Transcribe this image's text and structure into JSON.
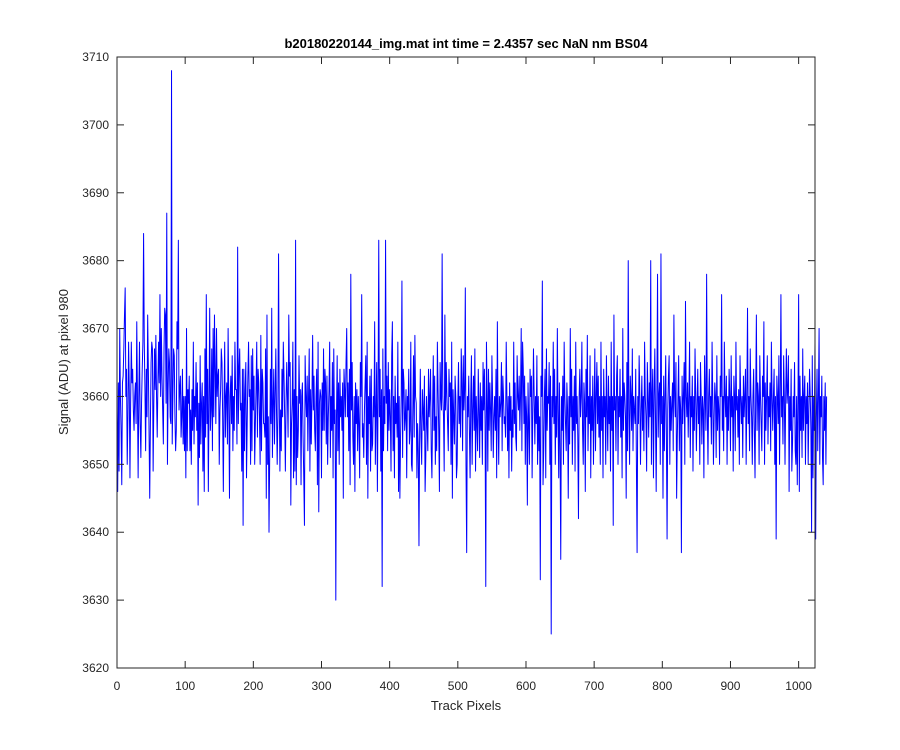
{
  "chart_data": {
    "type": "line",
    "title": "b20180220144_img.mat int time = 2.4357 sec  NaN nm BS04",
    "xlabel": "Track Pixels",
    "ylabel": "Signal (ADU) at pixel 980",
    "xlim": [
      0,
      1024
    ],
    "ylim": [
      3620,
      3710
    ],
    "xticks": [
      0,
      100,
      200,
      300,
      400,
      500,
      600,
      700,
      800,
      900,
      1000
    ],
    "yticks": [
      3620,
      3630,
      3640,
      3650,
      3660,
      3670,
      3680,
      3690,
      3700,
      3710
    ],
    "grid": false,
    "series": [
      {
        "color": "#0000ff",
        "x_start": 0,
        "x_step": 1,
        "values": [
          3658,
          3646,
          3662,
          3649,
          3670,
          3660,
          3655,
          3647,
          3662,
          3663,
          3667,
          3672,
          3676,
          3660,
          3664,
          3650,
          3657,
          3668,
          3661,
          3648,
          3659,
          3668,
          3662,
          3664,
          3658,
          3655,
          3660,
          3662,
          3656,
          3671,
          3660,
          3648,
          3660,
          3668,
          3656,
          3651,
          3659,
          3664,
          3668,
          3684,
          3668,
          3661,
          3652,
          3664,
          3657,
          3672,
          3664,
          3655,
          3645,
          3656,
          3665,
          3668,
          3667,
          3649,
          3659,
          3667,
          3661,
          3669,
          3660,
          3654,
          3662,
          3668,
          3662,
          3675,
          3660,
          3670,
          3663,
          3658,
          3653,
          3667,
          3673,
          3672,
          3659,
          3687,
          3650,
          3661,
          3667,
          3665,
          3657,
          3656,
          3708,
          3653,
          3660,
          3667,
          3666,
          3657,
          3652,
          3655,
          3671,
          3667,
          3683,
          3658,
          3661,
          3663,
          3654,
          3657,
          3664,
          3653,
          3660,
          3652,
          3660,
          3648,
          3670,
          3652,
          3661,
          3659,
          3663,
          3652,
          3658,
          3650,
          3661,
          3655,
          3668,
          3653,
          3660,
          3657,
          3665,
          3655,
          3662,
          3644,
          3659,
          3651,
          3666,
          3653,
          3659,
          3662,
          3649,
          3660,
          3646,
          3667,
          3654,
          3675,
          3656,
          3664,
          3646,
          3659,
          3673,
          3655,
          3658,
          3667,
          3652,
          3670,
          3657,
          3672,
          3664,
          3656,
          3670,
          3660,
          3663,
          3664,
          3650,
          3658,
          3661,
          3667,
          3665,
          3657,
          3646,
          3659,
          3668,
          3654,
          3660,
          3662,
          3653,
          3670,
          3660,
          3645,
          3660,
          3663,
          3656,
          3666,
          3652,
          3660,
          3655,
          3668,
          3661,
          3661,
          3653,
          3682,
          3656,
          3664,
          3667,
          3658,
          3659,
          3649,
          3664,
          3641,
          3664,
          3652,
          3661,
          3665,
          3648,
          3656,
          3663,
          3668,
          3660,
          3661,
          3650,
          3666,
          3652,
          3667,
          3658,
          3663,
          3650,
          3656,
          3661,
          3668,
          3654,
          3664,
          3662,
          3657,
          3650,
          3669,
          3652,
          3664,
          3662,
          3656,
          3656,
          3654,
          3667,
          3645,
          3672,
          3650,
          3657,
          3640,
          3651,
          3664,
          3656,
          3673,
          3651,
          3659,
          3664,
          3653,
          3660,
          3667,
          3658,
          3650,
          3657,
          3681,
          3660,
          3649,
          3658,
          3652,
          3664,
          3657,
          3668,
          3663,
          3657,
          3649,
          3659,
          3665,
          3660,
          3654,
          3672,
          3663,
          3665,
          3644,
          3656,
          3659,
          3668,
          3648,
          3661,
          3649,
          3683,
          3647,
          3660,
          3651,
          3655,
          3666,
          3659,
          3661,
          3647,
          3660,
          3662,
          3654,
          3648,
          3641,
          3666,
          3660,
          3657,
          3663,
          3652,
          3660,
          3667,
          3649,
          3661,
          3653,
          3660,
          3669,
          3658,
          3663,
          3655,
          3652,
          3660,
          3664,
          3647,
          3668,
          3643,
          3659,
          3661,
          3660,
          3648,
          3662,
          3655,
          3667,
          3655,
          3664,
          3662,
          3653,
          3663,
          3650,
          3657,
          3661,
          3668,
          3651,
          3660,
          3655,
          3665,
          3648,
          3667,
          3656,
          3658,
          3630,
          3657,
          3666,
          3652,
          3662,
          3650,
          3664,
          3657,
          3660,
          3655,
          3662,
          3645,
          3664,
          3661,
          3657,
          3665,
          3670,
          3657,
          3662,
          3652,
          3664,
          3647,
          3678,
          3658,
          3665,
          3654,
          3650,
          3660,
          3646,
          3662,
          3656,
          3661,
          3652,
          3660,
          3656,
          3648,
          3665,
          3660,
          3675,
          3654,
          3656,
          3651,
          3658,
          3662,
          3666,
          3650,
          3668,
          3645,
          3660,
          3656,
          3663,
          3649,
          3664,
          3652,
          3653,
          3660,
          3657,
          3671,
          3650,
          3658,
          3665,
          3646,
          3660,
          3683,
          3657,
          3664,
          3649,
          3661,
          3632,
          3667,
          3652,
          3660,
          3656,
          3683,
          3659,
          3663,
          3652,
          3665,
          3655,
          3661,
          3657,
          3649,
          3666,
          3671,
          3652,
          3660,
          3648,
          3663,
          3656,
          3659,
          3654,
          3668,
          3646,
          3660,
          3645,
          3654,
          3660,
          3677,
          3651,
          3664,
          3662,
          3655,
          3657,
          3661,
          3648,
          3660,
          3658,
          3664,
          3653,
          3655,
          3668,
          3650,
          3649,
          3658,
          3666,
          3654,
          3669,
          3660,
          3659,
          3648,
          3656,
          3652,
          3638,
          3655,
          3664,
          3654,
          3650,
          3661,
          3658,
          3655,
          3663,
          3646,
          3651,
          3660,
          3656,
          3652,
          3664,
          3657,
          3660,
          3664,
          3652,
          3648,
          3658,
          3666,
          3655,
          3663,
          3650,
          3657,
          3652,
          3668,
          3661,
          3655,
          3646,
          3665,
          3660,
          3658,
          3681,
          3660,
          3657,
          3649,
          3672,
          3658,
          3665,
          3660,
          3656,
          3652,
          3664,
          3660,
          3662,
          3650,
          3668,
          3645,
          3661,
          3657,
          3653,
          3663,
          3660,
          3648,
          3650,
          3659,
          3665,
          3656,
          3660,
          3654,
          3667,
          3662,
          3652,
          3666,
          3658,
          3661,
          3676,
          3650,
          3637,
          3660,
          3657,
          3663,
          3655,
          3648,
          3660,
          3666,
          3650,
          3658,
          3663,
          3655,
          3667,
          3649,
          3660,
          3656,
          3652,
          3664,
          3658,
          3651,
          3662,
          3655,
          3660,
          3650,
          3665,
          3658,
          3664,
          3656,
          3632,
          3668,
          3660,
          3649,
          3664,
          3655,
          3662,
          3658,
          3652,
          3666,
          3660,
          3651,
          3657,
          3660,
          3655,
          3664,
          3648,
          3671,
          3658,
          3650,
          3660,
          3657,
          3659,
          3665,
          3652,
          3663,
          3660,
          3656,
          3657,
          3654,
          3668,
          3660,
          3652,
          3660,
          3648,
          3662,
          3655,
          3660,
          3649,
          3658,
          3654,
          3668,
          3656,
          3662,
          3654,
          3652,
          3666,
          3660,
          3658,
          3663,
          3655,
          3660,
          3670,
          3652,
          3668,
          3664,
          3656,
          3663,
          3650,
          3660,
          3657,
          3644,
          3662,
          3656,
          3650,
          3664,
          3660,
          3663,
          3648,
          3658,
          3667,
          3660,
          3653,
          3660,
          3656,
          3666,
          3650,
          3660,
          3652,
          3657,
          3633,
          3663,
          3660,
          3677,
          3647,
          3652,
          3660,
          3664,
          3648,
          3667,
          3655,
          3660,
          3659,
          3665,
          3650,
          3663,
          3625,
          3660,
          3657,
          3668,
          3656,
          3664,
          3650,
          3660,
          3654,
          3670,
          3658,
          3648,
          3662,
          3652,
          3636,
          3660,
          3655,
          3663,
          3650,
          3668,
          3660,
          3656,
          3652,
          3662,
          3658,
          3645,
          3660,
          3653,
          3670,
          3657,
          3664,
          3650,
          3660,
          3655,
          3663,
          3649,
          3668,
          3656,
          3660,
          3654,
          3642,
          3660,
          3664,
          3657,
          3660,
          3668,
          3655,
          3650,
          3662,
          3659,
          3646,
          3664,
          3657,
          3669,
          3652,
          3660,
          3656,
          3666,
          3648,
          3660,
          3655,
          3663,
          3650,
          3658,
          3667,
          3652,
          3660,
          3665,
          3656,
          3663,
          3654,
          3660,
          3650,
          3668,
          3655,
          3660,
          3648,
          3664,
          3657,
          3660,
          3650,
          3666,
          3658,
          3652,
          3663,
          3656,
          3660,
          3649,
          3668,
          3655,
          3660,
          3641,
          3672,
          3658,
          3660,
          3652,
          3663,
          3666,
          3650,
          3660,
          3657,
          3664,
          3654,
          3660,
          3648,
          3670,
          3655,
          3662,
          3660,
          3657,
          3645,
          3665,
          3652,
          3680,
          3658,
          3650,
          3663,
          3660,
          3655,
          3667,
          3652,
          3660,
          3658,
          3656,
          3664,
          3650,
          3637,
          3660,
          3656,
          3666,
          3660,
          3650,
          3658,
          3663,
          3655,
          3660,
          3652,
          3668,
          3660,
          3657,
          3649,
          3665,
          3660,
          3654,
          3662,
          3657,
          3680,
          3650,
          3660,
          3664,
          3648,
          3660,
          3667,
          3657,
          3646,
          3660,
          3678,
          3654,
          3660,
          3662,
          3650,
          3681,
          3656,
          3660,
          3645,
          3663,
          3652,
          3660,
          3666,
          3654,
          3639,
          3658,
          3663,
          3666,
          3650,
          3660,
          3655,
          3659,
          3662,
          3652,
          3672,
          3660,
          3657,
          3665,
          3645,
          3654,
          3660,
          3666,
          3652,
          3660,
          3658,
          3637,
          3663,
          3656,
          3660,
          3665,
          3650,
          3674,
          3660,
          3657,
          3662,
          3654,
          3660,
          3668,
          3651,
          3660,
          3657,
          3663,
          3649,
          3660,
          3655,
          3667,
          3660,
          3652,
          3659,
          3664,
          3656,
          3660,
          3650,
          3665,
          3660,
          3653,
          3660,
          3658,
          3648,
          3666,
          3660,
          3655,
          3678,
          3658,
          3650,
          3660,
          3664,
          3657,
          3660,
          3653,
          3668,
          3660,
          3650,
          3657,
          3662,
          3660,
          3651,
          3666,
          3655,
          3660,
          3658,
          3650,
          3663,
          3660,
          3675,
          3655,
          3660,
          3652,
          3668,
          3660,
          3657,
          3663,
          3650,
          3660,
          3655,
          3664,
          3660,
          3652,
          3666,
          3657,
          3660,
          3649,
          3663,
          3660,
          3652,
          3668,
          3658,
          3660,
          3654,
          3661,
          3650,
          3666,
          3660,
          3656,
          3660,
          3651,
          3663,
          3657,
          3660,
          3664,
          3650,
          3660,
          3673,
          3656,
          3660,
          3652,
          3667,
          3660,
          3657,
          3650,
          3660,
          3664,
          3655,
          3648,
          3660,
          3672,
          3655,
          3662,
          3660,
          3650,
          3666,
          3660,
          3656,
          3652,
          3663,
          3660,
          3671,
          3650,
          3662,
          3655,
          3660,
          3666,
          3653,
          3660,
          3657,
          3662,
          3652,
          3668,
          3660,
          3655,
          3660,
          3664,
          3650,
          3660,
          3639,
          3663,
          3660,
          3656,
          3666,
          3650,
          3660,
          3675,
          3657,
          3660,
          3653,
          3666,
          3660,
          3650,
          3660,
          3667,
          3659,
          3661,
          3666,
          3646,
          3660,
          3655,
          3664,
          3649,
          3653,
          3660,
          3657,
          3665,
          3652,
          3650,
          3660,
          3647,
          3659,
          3675,
          3646,
          3663,
          3655,
          3660,
          3651,
          3667,
          3655,
          3660,
          3663,
          3650,
          3660,
          3656,
          3662,
          3650,
          3658,
          3664,
          3660,
          3655,
          3640,
          3666,
          3648,
          3660,
          3655,
          3668,
          3639,
          3657,
          3664,
          3652,
          3660,
          3670,
          3650,
          3660,
          3657,
          3663,
          3651,
          3647,
          3660,
          3655,
          3662,
          3650,
          3660
        ]
      }
    ]
  }
}
